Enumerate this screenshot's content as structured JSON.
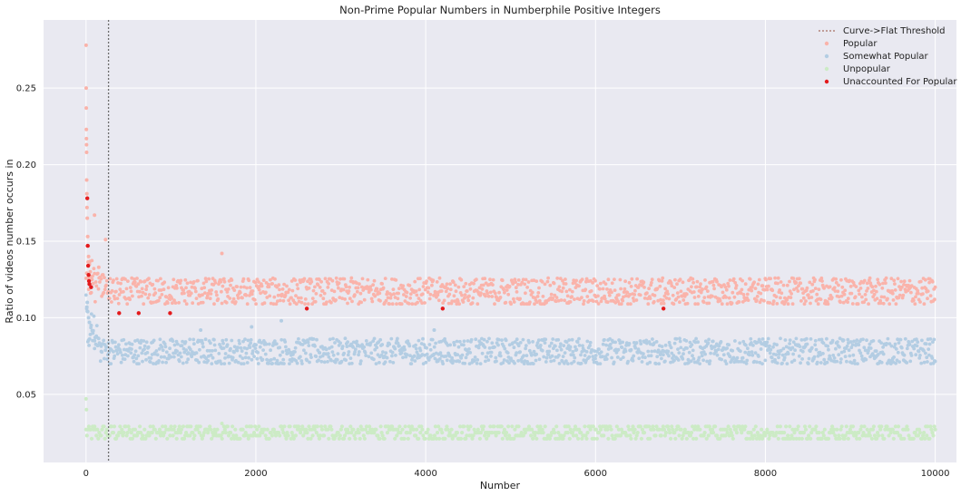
{
  "chart_data": {
    "type": "scatter",
    "title": "Non-Prime Popular Numbers in Numberphile Positive Integers",
    "xlabel": "Number",
    "ylabel": "Ratio of videos number occurs in",
    "xlim": [
      -500,
      10250
    ],
    "ylim": [
      0.0055,
      0.2945
    ],
    "xticks": [
      0,
      2000,
      4000,
      6000,
      8000,
      10000
    ],
    "xtick_labels": [
      "0",
      "2000",
      "4000",
      "6000",
      "8000",
      "10000"
    ],
    "yticks": [
      0.05,
      0.1,
      0.15,
      0.2,
      0.25
    ],
    "ytick_labels": [
      "0.05",
      "0.10",
      "0.15",
      "0.20",
      "0.25"
    ],
    "grid": true,
    "background": "#e9e9f1",
    "legend_position": "top-right",
    "threshold": {
      "label": "Curve->Flat Threshold",
      "x": 265,
      "color": "#6e6e6e"
    },
    "series": [
      {
        "name": "Popular",
        "color": "#fab3aa",
        "highlight_points": [
          [
            1,
            0.278
          ],
          [
            2,
            0.25
          ],
          [
            3,
            0.237
          ],
          [
            4,
            0.223
          ],
          [
            5,
            0.217
          ],
          [
            6,
            0.213
          ],
          [
            7,
            0.208
          ],
          [
            8,
            0.19
          ],
          [
            10,
            0.181
          ],
          [
            12,
            0.172
          ],
          [
            15,
            0.165
          ],
          [
            20,
            0.153
          ],
          [
            25,
            0.147
          ],
          [
            30,
            0.14
          ],
          [
            40,
            0.135
          ],
          [
            50,
            0.13
          ],
          [
            60,
            0.127
          ],
          [
            70,
            0.125
          ],
          [
            100,
            0.167
          ],
          [
            150,
            0.133
          ],
          [
            200,
            0.128
          ],
          [
            230,
            0.151
          ],
          [
            1600,
            0.142
          ]
        ],
        "band": {
          "x_from": 0,
          "x_to": 10000,
          "y_min": 0.109,
          "y_max": 0.127,
          "center": 0.117
        }
      },
      {
        "name": "Somewhat Popular",
        "color": "#b3cde3",
        "highlight_points": [
          [
            10,
            0.107
          ],
          [
            15,
            0.11
          ],
          [
            20,
            0.104
          ],
          [
            30,
            0.1
          ],
          [
            40,
            0.097
          ],
          [
            60,
            0.095
          ],
          [
            80,
            0.09
          ],
          [
            100,
            0.085
          ],
          [
            140,
            0.082
          ],
          [
            180,
            0.078
          ],
          [
            1350,
            0.092
          ],
          [
            1950,
            0.094
          ],
          [
            2300,
            0.098
          ],
          [
            4100,
            0.092
          ]
        ],
        "band": {
          "x_from": 0,
          "x_to": 10000,
          "y_min": 0.07,
          "y_max": 0.087,
          "center": 0.078
        }
      },
      {
        "name": "Unpopular",
        "color": "#ccebc5",
        "highlight_points": [
          [
            0,
            0.047
          ],
          [
            5,
            0.04
          ],
          [
            1600,
            0.031
          ]
        ],
        "band": {
          "x_from": 0,
          "x_to": 10000,
          "y_min": 0.02,
          "y_max": 0.031,
          "center": 0.025
        }
      },
      {
        "name": "Unaccounted For Popular",
        "color": "#e31a1c",
        "points": [
          [
            15,
            0.178
          ],
          [
            20,
            0.147
          ],
          [
            25,
            0.134
          ],
          [
            30,
            0.128
          ],
          [
            35,
            0.124
          ],
          [
            40,
            0.122
          ],
          [
            60,
            0.12
          ],
          [
            390,
            0.103
          ],
          [
            620,
            0.103
          ],
          [
            990,
            0.103
          ],
          [
            2600,
            0.106
          ],
          [
            4200,
            0.106
          ],
          [
            6800,
            0.106
          ]
        ]
      }
    ]
  }
}
